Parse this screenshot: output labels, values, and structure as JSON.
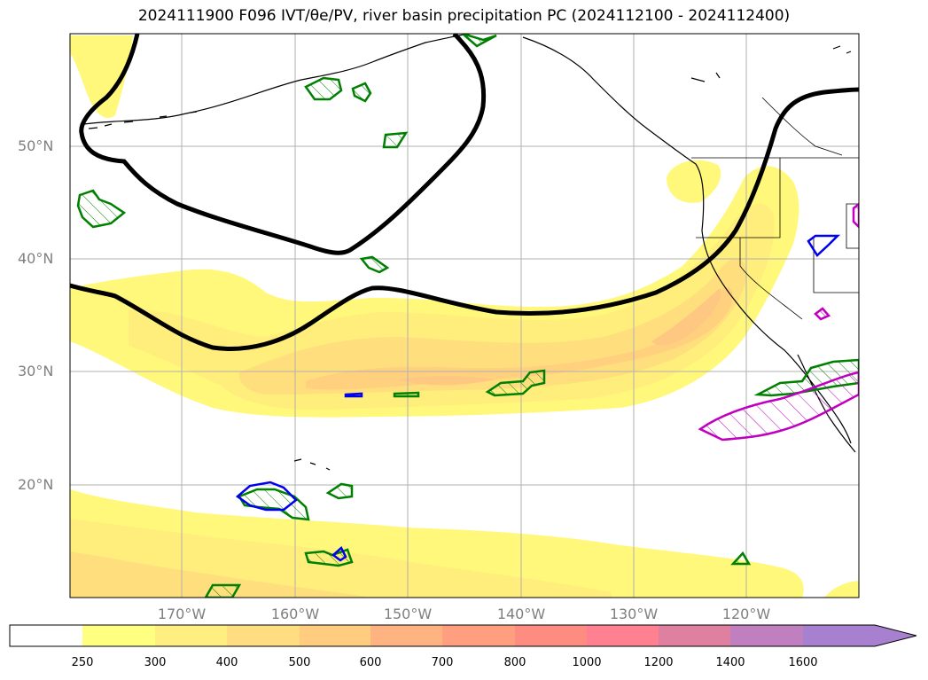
{
  "title": "2024111900 F096 IVT/θe/PV, river basin precipitation PC (2024112100 - 2024112400)",
  "map": {
    "lat_labels": [
      "50°N",
      "40°N",
      "30°N",
      "20°N"
    ],
    "lon_labels": [
      "170°W",
      "160°W",
      "150°W",
      "140°W",
      "130°W",
      "120°W"
    ],
    "lat_range": [
      10,
      60
    ],
    "lon_range": [
      -180,
      -110
    ]
  },
  "colorbar": {
    "ticks": [
      "250",
      "300",
      "400",
      "500",
      "600",
      "700",
      "800",
      "1000",
      "1200",
      "1400",
      "1600"
    ],
    "colors": [
      "#ffff80",
      "#ffee80",
      "#ffdd80",
      "#ffcc80",
      "#ffb380",
      "#ff9f80",
      "#ff8c80",
      "#ff8090",
      "#e080a0",
      "#c080c0",
      "#a880d0"
    ],
    "extend": "max"
  },
  "colors": {
    "ivt_low": "#fff87a",
    "ivt_mid": "#ffe07c",
    "ivt_high": "#ffcf80",
    "theta_e_contour": "#000000",
    "pv_green": "#008000",
    "pv_blue": "#0000ee",
    "pv_magenta": "#c000c0",
    "grid": "#b0b0b0"
  }
}
